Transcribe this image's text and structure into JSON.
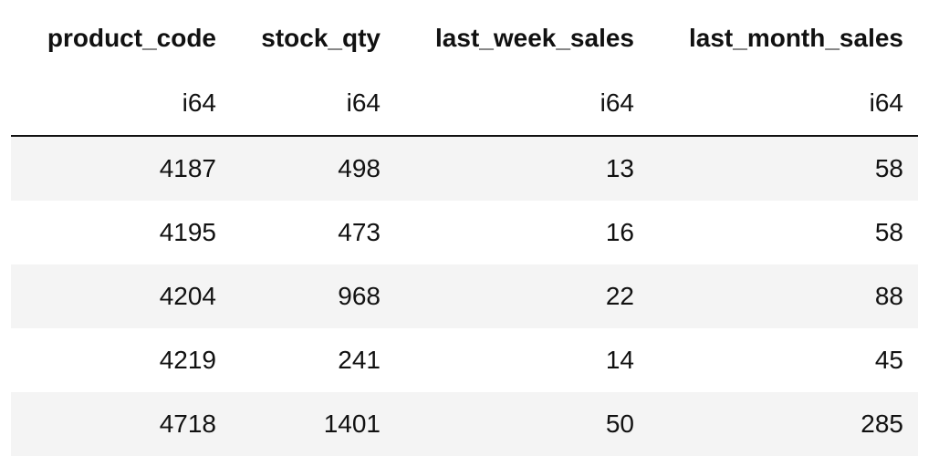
{
  "table": {
    "columns": [
      "product_code",
      "stock_qty",
      "last_week_sales",
      "last_month_sales"
    ],
    "dtypes": [
      "i64",
      "i64",
      "i64",
      "i64"
    ],
    "rows": [
      [
        4187,
        498,
        13,
        58
      ],
      [
        4195,
        473,
        16,
        58
      ],
      [
        4204,
        968,
        22,
        88
      ],
      [
        4219,
        241,
        14,
        45
      ],
      [
        4718,
        1401,
        50,
        285
      ]
    ]
  }
}
